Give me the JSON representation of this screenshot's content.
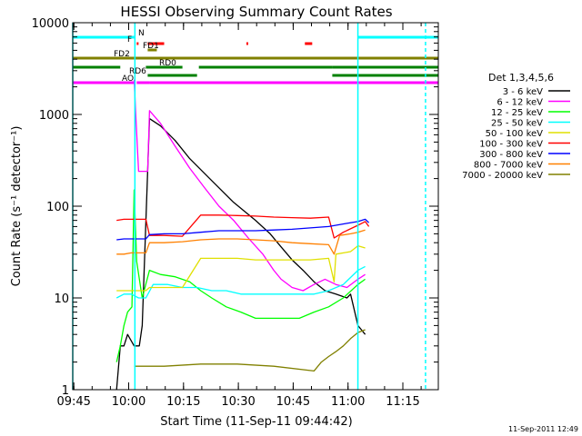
{
  "chart_data": {
    "type": "line",
    "title": "HESSI Observing Summary Count Rates",
    "xlabel": "Start Time (11-Sep-11 09:44:42)",
    "ylabel": "Count Rate (s⁻¹ detector⁻¹)",
    "x_unit": "minutes since 09:44:42",
    "xlim": [
      0,
      100
    ],
    "ylim": [
      1,
      10000
    ],
    "y_scale": "log",
    "x_ticks": [
      {
        "label": "09:45",
        "x": 0.3
      },
      {
        "label": "10:00",
        "x": 15.3
      },
      {
        "label": "10:15",
        "x": 30.3
      },
      {
        "label": "10:30",
        "x": 45.3
      },
      {
        "label": "10:45",
        "x": 60.3
      },
      {
        "label": "11:00",
        "x": 75.3
      },
      {
        "label": "11:15",
        "x": 90.3
      }
    ],
    "y_ticks": [
      {
        "label": "1",
        "v": 1
      },
      {
        "label": "10",
        "v": 10
      },
      {
        "label": "100",
        "v": 100
      },
      {
        "label": "1000",
        "v": 1000
      },
      {
        "label": "10000",
        "v": 10000
      }
    ],
    "legend_title": "Det 1,3,4,5,6",
    "legend_position": "right",
    "series": [
      {
        "name": "3 - 6 keV",
        "color": "#000000",
        "points": [
          [
            12,
            1
          ],
          [
            13,
            3
          ],
          [
            14,
            3
          ],
          [
            15,
            4
          ],
          [
            16.8,
            3
          ],
          [
            18.2,
            3
          ],
          [
            19,
            5
          ],
          [
            21,
            900
          ],
          [
            24,
            750
          ],
          [
            28,
            520
          ],
          [
            32,
            330
          ],
          [
            38,
            190
          ],
          [
            44,
            110
          ],
          [
            50,
            70
          ],
          [
            54,
            50
          ],
          [
            57,
            36
          ],
          [
            60,
            26
          ],
          [
            63,
            20
          ],
          [
            66,
            15
          ],
          [
            69,
            12
          ],
          [
            72,
            11
          ],
          [
            75,
            10
          ],
          [
            76,
            11
          ],
          [
            78,
            5
          ],
          [
            80,
            4
          ]
        ]
      },
      {
        "name": "6 - 12 keV",
        "color": "#ff00ff",
        "points": [
          [
            16.8,
            2400
          ],
          [
            17.3,
            900
          ],
          [
            18,
            240
          ],
          [
            20.5,
            240
          ],
          [
            21,
            1100
          ],
          [
            24,
            800
          ],
          [
            28,
            450
          ],
          [
            32,
            260
          ],
          [
            36,
            160
          ],
          [
            40,
            100
          ],
          [
            44,
            70
          ],
          [
            48,
            45
          ],
          [
            52,
            30
          ],
          [
            55,
            20
          ],
          [
            57,
            16
          ],
          [
            60,
            13
          ],
          [
            63,
            12
          ],
          [
            66,
            14
          ],
          [
            69,
            16
          ],
          [
            72,
            14
          ],
          [
            75,
            13
          ],
          [
            78,
            16
          ],
          [
            80,
            18
          ]
        ]
      },
      {
        "name": "12 - 25 keV",
        "color": "#00ff00",
        "points": [
          [
            12,
            2
          ],
          [
            13,
            3
          ],
          [
            14,
            5
          ],
          [
            15,
            7
          ],
          [
            16.2,
            8
          ],
          [
            16.8,
            150
          ],
          [
            17.5,
            25
          ],
          [
            19,
            10
          ],
          [
            21,
            20
          ],
          [
            24,
            18
          ],
          [
            28,
            17
          ],
          [
            32,
            15
          ],
          [
            35,
            12
          ],
          [
            38,
            10
          ],
          [
            42,
            8
          ],
          [
            46,
            7
          ],
          [
            50,
            6
          ],
          [
            54,
            6
          ],
          [
            58,
            6
          ],
          [
            62,
            6
          ],
          [
            66,
            7
          ],
          [
            70,
            8
          ],
          [
            74,
            10
          ],
          [
            78,
            14
          ],
          [
            80,
            16
          ]
        ]
      },
      {
        "name": "25 - 50 keV",
        "color": "#00ffff",
        "points": [
          [
            12,
            10
          ],
          [
            14,
            11
          ],
          [
            16,
            11
          ],
          [
            18,
            10
          ],
          [
            20,
            10
          ],
          [
            22,
            14
          ],
          [
            26,
            14
          ],
          [
            30,
            13
          ],
          [
            34,
            13
          ],
          [
            38,
            12
          ],
          [
            42,
            12
          ],
          [
            46,
            11
          ],
          [
            50,
            11
          ],
          [
            54,
            11
          ],
          [
            58,
            11
          ],
          [
            62,
            11
          ],
          [
            66,
            11
          ],
          [
            70,
            12
          ],
          [
            74,
            14
          ],
          [
            78,
            20
          ],
          [
            80,
            22
          ]
        ]
      },
      {
        "name": "50 - 100 keV",
        "color": "#e0e000",
        "points": [
          [
            12,
            12
          ],
          [
            14,
            12
          ],
          [
            16,
            12
          ],
          [
            18,
            12
          ],
          [
            20,
            12
          ],
          [
            21,
            13
          ],
          [
            30,
            13
          ],
          [
            35,
            27
          ],
          [
            40,
            27
          ],
          [
            45,
            27
          ],
          [
            50,
            26
          ],
          [
            55,
            26
          ],
          [
            60,
            26
          ],
          [
            65,
            26
          ],
          [
            70,
            27
          ],
          [
            71.5,
            15
          ],
          [
            72,
            30
          ],
          [
            76,
            32
          ],
          [
            78,
            37
          ],
          [
            80,
            35
          ]
        ]
      },
      {
        "name": "100 - 300 keV",
        "color": "#ff0000",
        "points": [
          [
            12,
            70
          ],
          [
            14,
            72
          ],
          [
            16,
            72
          ],
          [
            18,
            72
          ],
          [
            20,
            72
          ],
          [
            21,
            48
          ],
          [
            25,
            48
          ],
          [
            30,
            47
          ],
          [
            35,
            80
          ],
          [
            40,
            80
          ],
          [
            45,
            79
          ],
          [
            50,
            78
          ],
          [
            55,
            76
          ],
          [
            60,
            75
          ],
          [
            65,
            74
          ],
          [
            70,
            76
          ],
          [
            71.5,
            45
          ],
          [
            74,
            52
          ],
          [
            78,
            62
          ],
          [
            80,
            68
          ],
          [
            81,
            60
          ]
        ]
      },
      {
        "name": "300 - 800 keV",
        "color": "#0000ff",
        "points": [
          [
            12,
            43
          ],
          [
            14,
            44
          ],
          [
            16,
            44
          ],
          [
            18,
            44
          ],
          [
            20,
            44
          ],
          [
            21,
            49
          ],
          [
            25,
            50
          ],
          [
            30,
            50
          ],
          [
            35,
            52
          ],
          [
            40,
            54
          ],
          [
            45,
            54
          ],
          [
            50,
            54
          ],
          [
            55,
            55
          ],
          [
            60,
            56
          ],
          [
            65,
            58
          ],
          [
            70,
            60
          ],
          [
            72,
            62
          ],
          [
            75,
            65
          ],
          [
            78,
            68
          ],
          [
            80,
            72
          ],
          [
            81,
            66
          ]
        ]
      },
      {
        "name": "800 - 7000 keV",
        "color": "#ff8000",
        "points": [
          [
            12,
            30
          ],
          [
            14,
            30
          ],
          [
            16,
            31
          ],
          [
            18,
            31
          ],
          [
            20,
            31
          ],
          [
            21,
            40
          ],
          [
            25,
            40
          ],
          [
            30,
            41
          ],
          [
            35,
            43
          ],
          [
            40,
            44
          ],
          [
            45,
            44
          ],
          [
            50,
            43
          ],
          [
            55,
            42
          ],
          [
            60,
            40
          ],
          [
            65,
            39
          ],
          [
            70,
            38
          ],
          [
            71.5,
            30
          ],
          [
            73,
            48
          ],
          [
            76,
            50
          ],
          [
            78,
            52
          ],
          [
            80,
            55
          ]
        ]
      },
      {
        "name": "7000 - 20000 keV",
        "color": "#808000",
        "points": [
          [
            16.8,
            1.8
          ],
          [
            25,
            1.8
          ],
          [
            35,
            1.9
          ],
          [
            45,
            1.9
          ],
          [
            55,
            1.8
          ],
          [
            66,
            1.6
          ],
          [
            68,
            2
          ],
          [
            70,
            2.3
          ],
          [
            72,
            2.6
          ],
          [
            74,
            3
          ],
          [
            76,
            3.6
          ],
          [
            78,
            4.2
          ],
          [
            80,
            4.5
          ]
        ]
      }
    ],
    "flag_bars": [
      {
        "label": "N",
        "color": "#00ffff",
        "segments": [
          [
            0,
            16.8
          ],
          [
            78,
            100
          ]
        ]
      },
      {
        "label": "F",
        "color": "#ff0000",
        "segments": [
          [
            17.5,
            18
          ],
          [
            20.5,
            25
          ],
          [
            47.5,
            48
          ],
          [
            63.5,
            65.5
          ]
        ]
      },
      {
        "label": "FD1",
        "color": "#808000",
        "segments": [
          [
            20.5,
            23
          ]
        ]
      },
      {
        "label": "FD2",
        "color": "#808000",
        "segments": [
          [
            0,
            100
          ]
        ]
      },
      {
        "label": "RD0",
        "color": "#008000",
        "segments": [
          [
            0,
            13
          ],
          [
            20,
            30
          ],
          [
            34.5,
            71
          ],
          [
            71,
            100
          ]
        ]
      },
      {
        "label": "RD6",
        "color": "#008000",
        "segments": [
          [
            20.5,
            34
          ],
          [
            71,
            100
          ]
        ]
      },
      {
        "label": "AO",
        "color": "#ff00ff",
        "segments": [
          [
            0,
            16.8
          ],
          [
            17.5,
            21
          ],
          [
            21,
            100
          ]
        ]
      }
    ],
    "markers": [
      {
        "x": 0,
        "color": "#00ffff",
        "style": "solid"
      },
      {
        "x": 17,
        "color": "#00ffff",
        "style": "solid"
      },
      {
        "x": 78,
        "color": "#00ffff",
        "style": "solid"
      },
      {
        "x": 96.5,
        "color": "#00ffff",
        "style": "dashed"
      }
    ]
  },
  "footer": {
    "timestamp": "11-Sep-2011 12:49"
  }
}
